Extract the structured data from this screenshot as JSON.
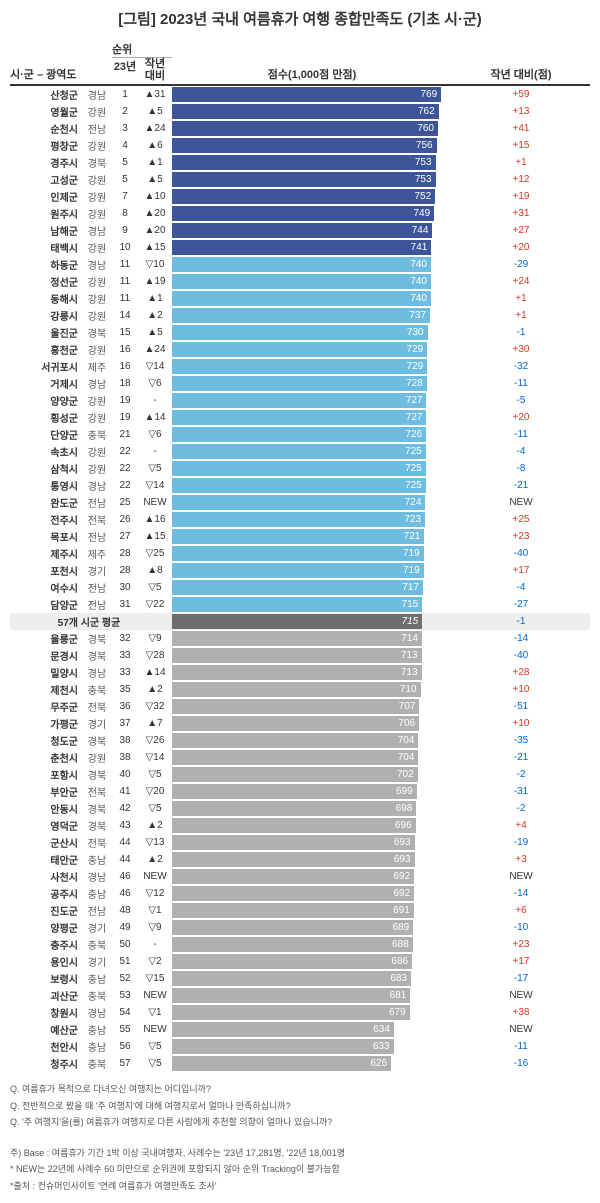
{
  "title": "[그림] 2023년 국내 여름휴가 여행 종합만족도 (기초 시·군)",
  "headers": {
    "city_prov": "시·군 – 광역도",
    "rank_top": "순위",
    "rank_year": "23년",
    "rank_chg": "작년\n대비",
    "score": "점수(1,000점 만점)",
    "vs_last": "작년 대비(점)"
  },
  "chart": {
    "bar_max": 800,
    "colors": {
      "top10": "#3d5599",
      "mid": "#6ebde0",
      "low": "#b0b0b0",
      "avg": "#6e6e6e"
    }
  },
  "avg_row": {
    "label": "57개 시군 평균",
    "score": 715,
    "diff": -1
  },
  "rows": [
    {
      "city": "산청군",
      "prov": "경남",
      "rank": 1,
      "chg": "▲31",
      "score": 769,
      "diff": 59,
      "tier": "top10"
    },
    {
      "city": "영월군",
      "prov": "강원",
      "rank": 2,
      "chg": "▲5",
      "score": 762,
      "diff": 13,
      "tier": "top10"
    },
    {
      "city": "순천시",
      "prov": "전남",
      "rank": 3,
      "chg": "▲24",
      "score": 760,
      "diff": 41,
      "tier": "top10"
    },
    {
      "city": "평창군",
      "prov": "강원",
      "rank": 4,
      "chg": "▲6",
      "score": 756,
      "diff": 15,
      "tier": "top10"
    },
    {
      "city": "경주시",
      "prov": "경북",
      "rank": 5,
      "chg": "▲1",
      "score": 753,
      "diff": 1,
      "tier": "top10"
    },
    {
      "city": "고성군",
      "prov": "강원",
      "rank": 5,
      "chg": "▲5",
      "score": 753,
      "diff": 12,
      "tier": "top10"
    },
    {
      "city": "인제군",
      "prov": "강원",
      "rank": 7,
      "chg": "▲10",
      "score": 752,
      "diff": 19,
      "tier": "top10"
    },
    {
      "city": "원주시",
      "prov": "강원",
      "rank": 8,
      "chg": "▲20",
      "score": 749,
      "diff": 31,
      "tier": "top10"
    },
    {
      "city": "남해군",
      "prov": "경남",
      "rank": 9,
      "chg": "▲20",
      "score": 744,
      "diff": 27,
      "tier": "top10"
    },
    {
      "city": "태백시",
      "prov": "강원",
      "rank": 10,
      "chg": "▲15",
      "score": 741,
      "diff": 20,
      "tier": "top10"
    },
    {
      "city": "하동군",
      "prov": "경남",
      "rank": 11,
      "chg": "▽10",
      "score": 740,
      "diff": -29,
      "tier": "mid"
    },
    {
      "city": "정선군",
      "prov": "강원",
      "rank": 11,
      "chg": "▲19",
      "score": 740,
      "diff": 24,
      "tier": "mid"
    },
    {
      "city": "동해시",
      "prov": "강원",
      "rank": 11,
      "chg": "▲1",
      "score": 740,
      "diff": 1,
      "tier": "mid"
    },
    {
      "city": "강릉시",
      "prov": "강원",
      "rank": 14,
      "chg": "▲2",
      "score": 737,
      "diff": 1,
      "tier": "mid"
    },
    {
      "city": "울진군",
      "prov": "경북",
      "rank": 15,
      "chg": "▲5",
      "score": 730,
      "diff": -1,
      "tier": "mid"
    },
    {
      "city": "홍천군",
      "prov": "강원",
      "rank": 16,
      "chg": "▲24",
      "score": 729,
      "diff": 30,
      "tier": "mid"
    },
    {
      "city": "서귀포시",
      "prov": "제주",
      "rank": 16,
      "chg": "▽14",
      "score": 729,
      "diff": -32,
      "tier": "mid"
    },
    {
      "city": "거제시",
      "prov": "경남",
      "rank": 18,
      "chg": "▽6",
      "score": 728,
      "diff": -11,
      "tier": "mid"
    },
    {
      "city": "양양군",
      "prov": "강원",
      "rank": 19,
      "chg": "-",
      "score": 727,
      "diff": -5,
      "tier": "mid"
    },
    {
      "city": "횡성군",
      "prov": "강원",
      "rank": 19,
      "chg": "▲14",
      "score": 727,
      "diff": 20,
      "tier": "mid"
    },
    {
      "city": "단양군",
      "prov": "충북",
      "rank": 21,
      "chg": "▽6",
      "score": 726,
      "diff": -11,
      "tier": "mid"
    },
    {
      "city": "속초시",
      "prov": "강원",
      "rank": 22,
      "chg": "-",
      "score": 725,
      "diff": -4,
      "tier": "mid"
    },
    {
      "city": "삼척시",
      "prov": "강원",
      "rank": 22,
      "chg": "▽5",
      "score": 725,
      "diff": -8,
      "tier": "mid"
    },
    {
      "city": "통영시",
      "prov": "경남",
      "rank": 22,
      "chg": "▽14",
      "score": 725,
      "diff": -21,
      "tier": "mid"
    },
    {
      "city": "완도군",
      "prov": "전남",
      "rank": 25,
      "chg": "NEW",
      "score": 724,
      "diff": "NEW",
      "tier": "mid"
    },
    {
      "city": "전주시",
      "prov": "전북",
      "rank": 26,
      "chg": "▲16",
      "score": 723,
      "diff": 25,
      "tier": "mid"
    },
    {
      "city": "목포시",
      "prov": "전남",
      "rank": 27,
      "chg": "▲15",
      "score": 721,
      "diff": 23,
      "tier": "mid"
    },
    {
      "city": "제주시",
      "prov": "제주",
      "rank": 28,
      "chg": "▽25",
      "score": 719,
      "diff": -40,
      "tier": "mid"
    },
    {
      "city": "포천시",
      "prov": "경기",
      "rank": 28,
      "chg": "▲8",
      "score": 719,
      "diff": 17,
      "tier": "mid"
    },
    {
      "city": "여수시",
      "prov": "전남",
      "rank": 30,
      "chg": "▽5",
      "score": 717,
      "diff": -4,
      "tier": "mid"
    },
    {
      "city": "담양군",
      "prov": "전남",
      "rank": 31,
      "chg": "▽22",
      "score": 715,
      "diff": -27,
      "tier": "mid"
    },
    {
      "city": "울릉군",
      "prov": "경북",
      "rank": 32,
      "chg": "▽9",
      "score": 714,
      "diff": -14,
      "tier": "low"
    },
    {
      "city": "문경시",
      "prov": "경북",
      "rank": 33,
      "chg": "▽28",
      "score": 713,
      "diff": -40,
      "tier": "low"
    },
    {
      "city": "밀양시",
      "prov": "경남",
      "rank": 33,
      "chg": "▲14",
      "score": 713,
      "diff": 28,
      "tier": "low"
    },
    {
      "city": "제천시",
      "prov": "충북",
      "rank": 35,
      "chg": "▲2",
      "score": 710,
      "diff": 10,
      "tier": "low"
    },
    {
      "city": "무주군",
      "prov": "전북",
      "rank": 36,
      "chg": "▽32",
      "score": 707,
      "diff": -51,
      "tier": "low"
    },
    {
      "city": "가평군",
      "prov": "경기",
      "rank": 37,
      "chg": "▲7",
      "score": 706,
      "diff": 10,
      "tier": "low"
    },
    {
      "city": "청도군",
      "prov": "경북",
      "rank": 38,
      "chg": "▽26",
      "score": 704,
      "diff": -35,
      "tier": "low"
    },
    {
      "city": "춘천시",
      "prov": "강원",
      "rank": 38,
      "chg": "▽14",
      "score": 704,
      "diff": -21,
      "tier": "low"
    },
    {
      "city": "포항시",
      "prov": "경북",
      "rank": 40,
      "chg": "▽5",
      "score": 702,
      "diff": -2,
      "tier": "low"
    },
    {
      "city": "부안군",
      "prov": "전북",
      "rank": 41,
      "chg": "▽20",
      "score": 699,
      "diff": -31,
      "tier": "low"
    },
    {
      "city": "안동시",
      "prov": "경북",
      "rank": 42,
      "chg": "▽5",
      "score": 698,
      "diff": -2,
      "tier": "low"
    },
    {
      "city": "영덕군",
      "prov": "경북",
      "rank": 43,
      "chg": "▲2",
      "score": 696,
      "diff": 4,
      "tier": "low"
    },
    {
      "city": "군산시",
      "prov": "전북",
      "rank": 44,
      "chg": "▽13",
      "score": 693,
      "diff": -19,
      "tier": "low"
    },
    {
      "city": "태안군",
      "prov": "충남",
      "rank": 44,
      "chg": "▲2",
      "score": 693,
      "diff": 3,
      "tier": "low"
    },
    {
      "city": "사천시",
      "prov": "경남",
      "rank": 46,
      "chg": "NEW",
      "score": 692,
      "diff": "NEW",
      "tier": "low"
    },
    {
      "city": "공주시",
      "prov": "충남",
      "rank": 46,
      "chg": "▽12",
      "score": 692,
      "diff": -14,
      "tier": "low"
    },
    {
      "city": "진도군",
      "prov": "전남",
      "rank": 48,
      "chg": "▽1",
      "score": 691,
      "diff": 6,
      "tier": "low"
    },
    {
      "city": "양평군",
      "prov": "경기",
      "rank": 49,
      "chg": "▽9",
      "score": 689,
      "diff": -10,
      "tier": "low"
    },
    {
      "city": "충주시",
      "prov": "충북",
      "rank": 50,
      "chg": "-",
      "score": 688,
      "diff": 23,
      "tier": "low"
    },
    {
      "city": "용인시",
      "prov": "경기",
      "rank": 51,
      "chg": "▽2",
      "score": 686,
      "diff": 17,
      "tier": "low"
    },
    {
      "city": "보령시",
      "prov": "충남",
      "rank": 52,
      "chg": "▽15",
      "score": 683,
      "diff": -17,
      "tier": "low"
    },
    {
      "city": "괴산군",
      "prov": "충북",
      "rank": 53,
      "chg": "NEW",
      "score": 681,
      "diff": "NEW",
      "tier": "low"
    },
    {
      "city": "창원시",
      "prov": "경남",
      "rank": 54,
      "chg": "▽1",
      "score": 679,
      "diff": 38,
      "tier": "low"
    },
    {
      "city": "예산군",
      "prov": "충남",
      "rank": 55,
      "chg": "NEW",
      "score": 634,
      "diff": "NEW",
      "tier": "low"
    },
    {
      "city": "천안시",
      "prov": "충남",
      "rank": 56,
      "chg": "▽5",
      "score": 633,
      "diff": -11,
      "tier": "low"
    },
    {
      "city": "청주시",
      "prov": "충북",
      "rank": 57,
      "chg": "▽5",
      "score": 626,
      "diff": -16,
      "tier": "low"
    }
  ],
  "footer": {
    "q1": "Q. 여름휴가 목적으로 다녀오신 여행지는 어디입니까?",
    "q2": "Q. 전반적으로 봤을 때 '주 여행지'에 대해 여행지로서 얼마나 만족하십니까?",
    "q3": "Q. '주 여행지'을(를) 여름휴가 여행지로 다른 사람에게 추천할 의향이 얼마나 있습니까?",
    "n1": "주) Base : 여름휴가 기간 1박 이상 국내여행자, 사례수는 '23년 17,281명, '22년 18,001명",
    "n2": "* NEW는 22년에 사례수 60 미만으로 순위권에 포함되지 않아 순위 Tracking이 불가능함",
    "n3": "*출처 : 컨슈머인사이트 '연례 여름휴가 여행만족도 조사'"
  }
}
